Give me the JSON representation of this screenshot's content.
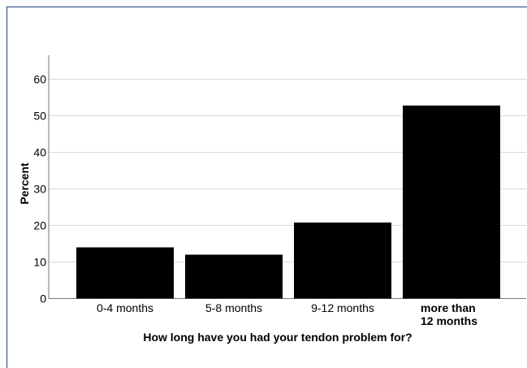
{
  "chart_data": {
    "type": "bar",
    "categories": [
      "0-4 months",
      "5-8 months",
      "9-12 months",
      "more than 12 months"
    ],
    "category_lines": [
      [
        "0-4 months"
      ],
      [
        "5-8 months"
      ],
      [
        "9-12 months"
      ],
      [
        "more than",
        "12 months"
      ]
    ],
    "values": [
      14,
      12,
      20.8,
      52.8
    ],
    "xlabel": "How long have you had your tendon problem for?",
    "ylabel": "Percent",
    "ylim": [
      0,
      65
    ],
    "yticks": [
      0,
      10,
      20,
      30,
      40,
      50,
      60
    ],
    "grid": true,
    "bar_color": "#000000",
    "grid_color": "#d9d9d9",
    "frame_color": "#5a6fa8"
  }
}
